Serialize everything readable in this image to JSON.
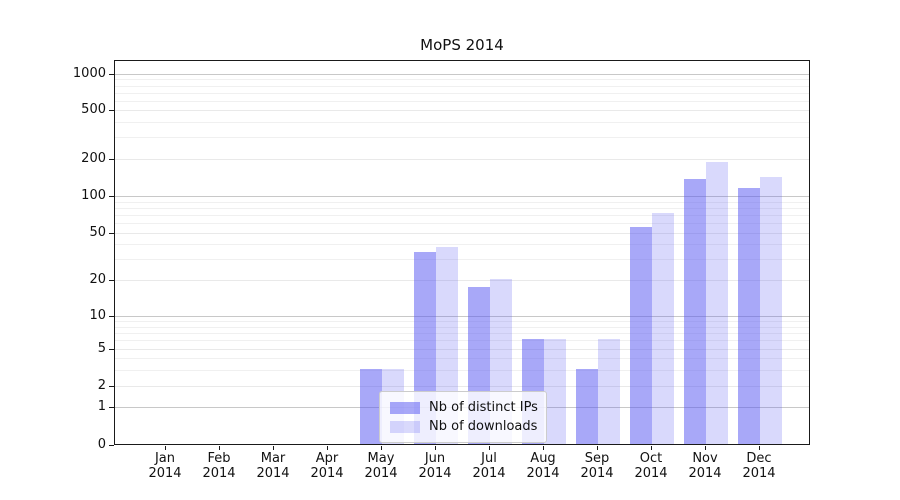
{
  "title": "MoPS 2014",
  "chart_data": {
    "type": "bar",
    "title": "MoPS 2014",
    "categories": [
      "Jan 2014",
      "Feb 2014",
      "Mar 2014",
      "Apr 2014",
      "May 2014",
      "Jun 2014",
      "Jul 2014",
      "Aug 2014",
      "Sep 2014",
      "Oct 2014",
      "Nov 2014",
      "Dec 2014"
    ],
    "series": [
      {
        "name": "Nb of distinct IPs",
        "color": "rgba(81,81,241,0.5)",
        "values": [
          0,
          0,
          0,
          0,
          3,
          34,
          17,
          6,
          3,
          55,
          135,
          115
        ]
      },
      {
        "name": "Nb of downloads",
        "color": "rgba(81,81,241,0.22)",
        "values": [
          0,
          0,
          0,
          0,
          3,
          37,
          20,
          6,
          6,
          72,
          185,
          140
        ]
      }
    ],
    "xlabel": "",
    "ylabel": "",
    "y_ticks": [
      0,
      1,
      2,
      5,
      10,
      20,
      50,
      100,
      200,
      500,
      1000
    ],
    "y_scale": "symlog",
    "ylim": [
      0,
      1300
    ],
    "grid": "on",
    "legend_position": "lower-center",
    "colors": {
      "major_grid": "#c8c8c8",
      "minor_grid": "#e9e9e9",
      "axis": "#1a1a1a",
      "legend_border": "#cccccc"
    }
  }
}
